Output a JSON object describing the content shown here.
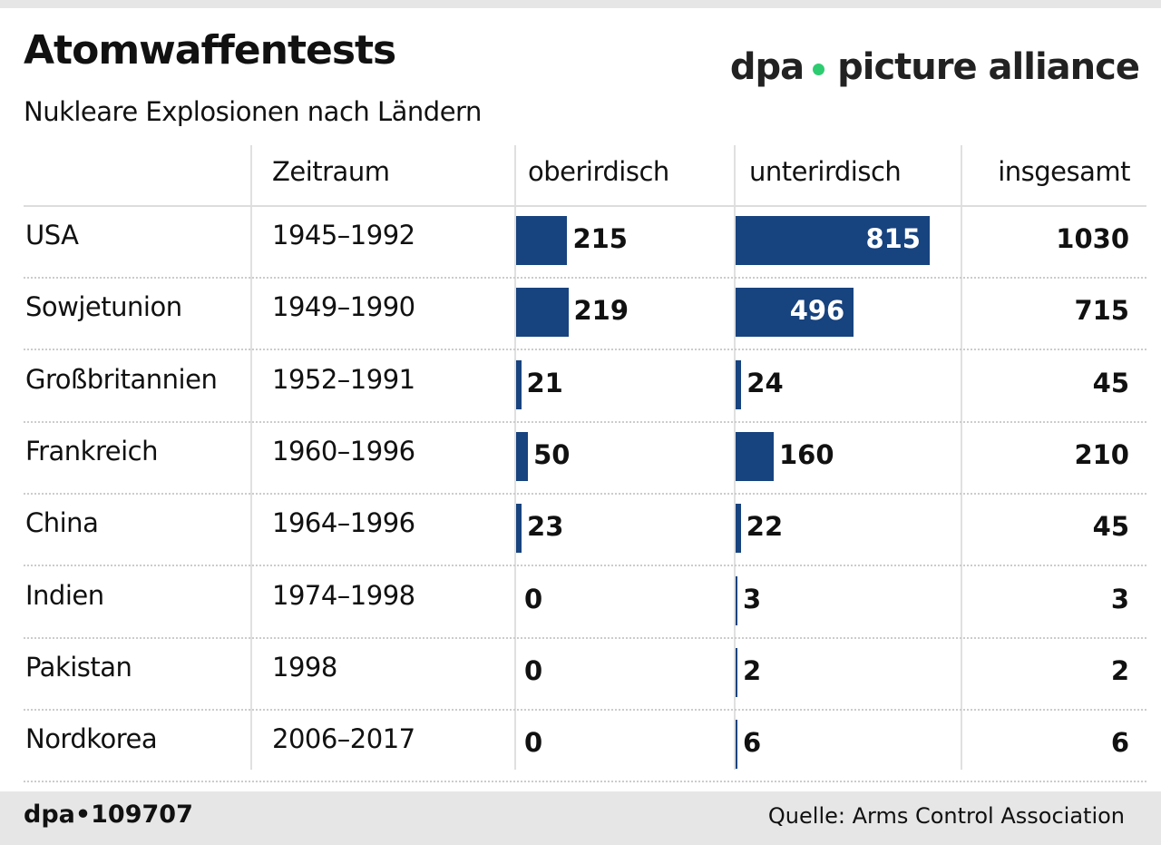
{
  "title": "Atomwaffentests",
  "subtitle": "Nukleare Explosionen nach Ländern",
  "chart_data": {
    "type": "table",
    "columns": [
      "",
      "Zeitraum",
      "oberirdisch",
      "unterirdisch",
      "insgesamt"
    ],
    "rows": [
      {
        "country": "USA",
        "period": "1945–1992",
        "above": 215,
        "below": 815,
        "total": 1030
      },
      {
        "country": "Sowjetunion",
        "period": "1949–1990",
        "above": 219,
        "below": 496,
        "total": 715
      },
      {
        "country": "Großbritannien",
        "period": "1952–1991",
        "above": 21,
        "below": 24,
        "total": 45
      },
      {
        "country": "Frankreich",
        "period": "1960–1996",
        "above": 50,
        "below": 160,
        "total": 210
      },
      {
        "country": "China",
        "period": "1964–1996",
        "above": 23,
        "below": 22,
        "total": 45
      },
      {
        "country": "Indien",
        "period": "1974–1998",
        "above": 0,
        "below": 3,
        "total": 3
      },
      {
        "country": "Pakistan",
        "period": "1998",
        "above": 0,
        "below": 2,
        "total": 2
      },
      {
        "country": "Nordkorea",
        "period": "2006–2017",
        "above": 0,
        "below": 6,
        "total": 6
      }
    ],
    "bar_color": "#17437f"
  },
  "footer": {
    "code": "dpa•109707",
    "source": "Quelle: Arms Control Association"
  },
  "watermark": {
    "left": "dpa",
    "right": "picture alliance",
    "dot_color": "#2ecc71"
  }
}
